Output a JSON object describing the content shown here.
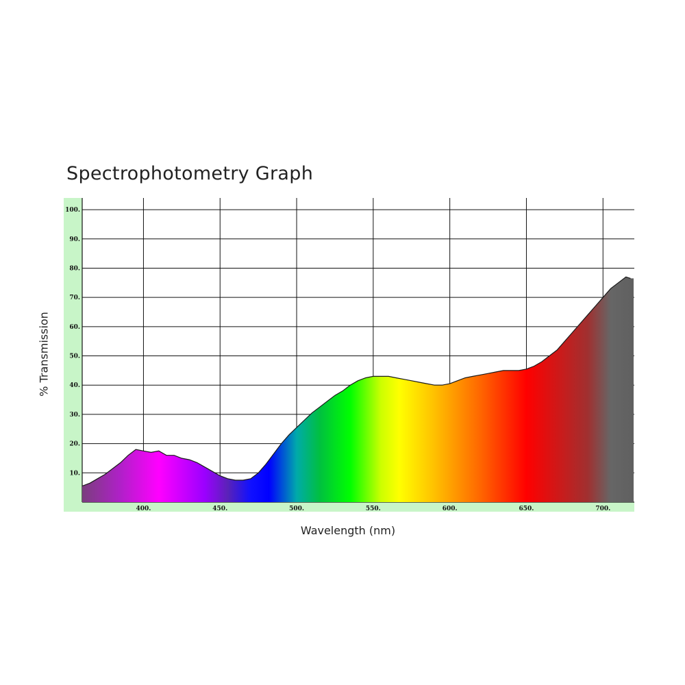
{
  "chart_data": {
    "type": "area",
    "title": "Spectrophotometry Graph",
    "xlabel": "Wavelength (nm)",
    "ylabel": "% Transmission",
    "xlim": [
      360,
      720
    ],
    "ylim": [
      0,
      104
    ],
    "x_ticks": [
      400,
      450,
      500,
      550,
      600,
      650,
      700
    ],
    "x_tick_labels": [
      "400.",
      "450.",
      "500.",
      "550.",
      "600.",
      "650.",
      "700."
    ],
    "y_ticks": [
      10,
      20,
      30,
      40,
      50,
      60,
      70,
      80,
      90,
      100
    ],
    "y_tick_labels": [
      "10.",
      "20.",
      "30.",
      "40.",
      "50.",
      "60.",
      "70.",
      "80.",
      "90.",
      "100."
    ],
    "grid": true,
    "series": [
      {
        "x": [
          360,
          365,
          370,
          375,
          380,
          385,
          390,
          395,
          400,
          405,
          410,
          415,
          420,
          425,
          430,
          435,
          440,
          445,
          450,
          455,
          460,
          465,
          470,
          475,
          480,
          485,
          490,
          495,
          500,
          505,
          510,
          515,
          520,
          525,
          530,
          535,
          540,
          545,
          550,
          555,
          560,
          565,
          570,
          575,
          580,
          585,
          590,
          595,
          600,
          605,
          610,
          615,
          620,
          625,
          630,
          635,
          640,
          645,
          650,
          655,
          660,
          665,
          670,
          675,
          680,
          685,
          690,
          695,
          700,
          705,
          710,
          715,
          718
        ],
        "y": [
          5.5,
          6.5,
          8,
          9.5,
          11.5,
          13.5,
          16,
          18,
          17.5,
          17,
          17.5,
          16,
          16,
          15,
          14.5,
          13.5,
          12,
          10.5,
          9,
          8,
          7.5,
          7.5,
          8,
          10,
          13,
          16.5,
          20,
          23,
          25.5,
          28,
          30.5,
          32.5,
          34.5,
          36.5,
          38,
          40,
          41.5,
          42.5,
          43,
          43,
          43,
          42.5,
          42,
          41.5,
          41,
          40.5,
          40,
          40,
          40.5,
          41.5,
          42.5,
          43,
          43.5,
          44,
          44.5,
          45,
          45,
          45,
          45.5,
          46.5,
          48,
          50,
          52,
          55,
          58,
          61,
          64,
          67,
          70,
          73,
          75,
          77,
          76.5
        ]
      }
    ]
  },
  "colors": {
    "plot_frame": "#c8f5c8",
    "grid": "#111111",
    "curve": "#1a1a1a",
    "spectrum_stops": [
      {
        "nm": 360,
        "color": "#7a3e7e"
      },
      {
        "nm": 385,
        "color": "#b020c8"
      },
      {
        "nm": 410,
        "color": "#ff00ff"
      },
      {
        "nm": 440,
        "color": "#9b00ff"
      },
      {
        "nm": 455,
        "color": "#5a22b8"
      },
      {
        "nm": 470,
        "color": "#1010ff"
      },
      {
        "nm": 482,
        "color": "#0000ff"
      },
      {
        "nm": 500,
        "color": "#00aaaa"
      },
      {
        "nm": 515,
        "color": "#00c040"
      },
      {
        "nm": 535,
        "color": "#00ff00"
      },
      {
        "nm": 555,
        "color": "#ccff00"
      },
      {
        "nm": 567,
        "color": "#ffff00"
      },
      {
        "nm": 590,
        "color": "#ffc000"
      },
      {
        "nm": 620,
        "color": "#ff6600"
      },
      {
        "nm": 650,
        "color": "#ff0000"
      },
      {
        "nm": 690,
        "color": "#a03030"
      },
      {
        "nm": 705,
        "color": "#666666"
      },
      {
        "nm": 720,
        "color": "#606060"
      }
    ]
  }
}
